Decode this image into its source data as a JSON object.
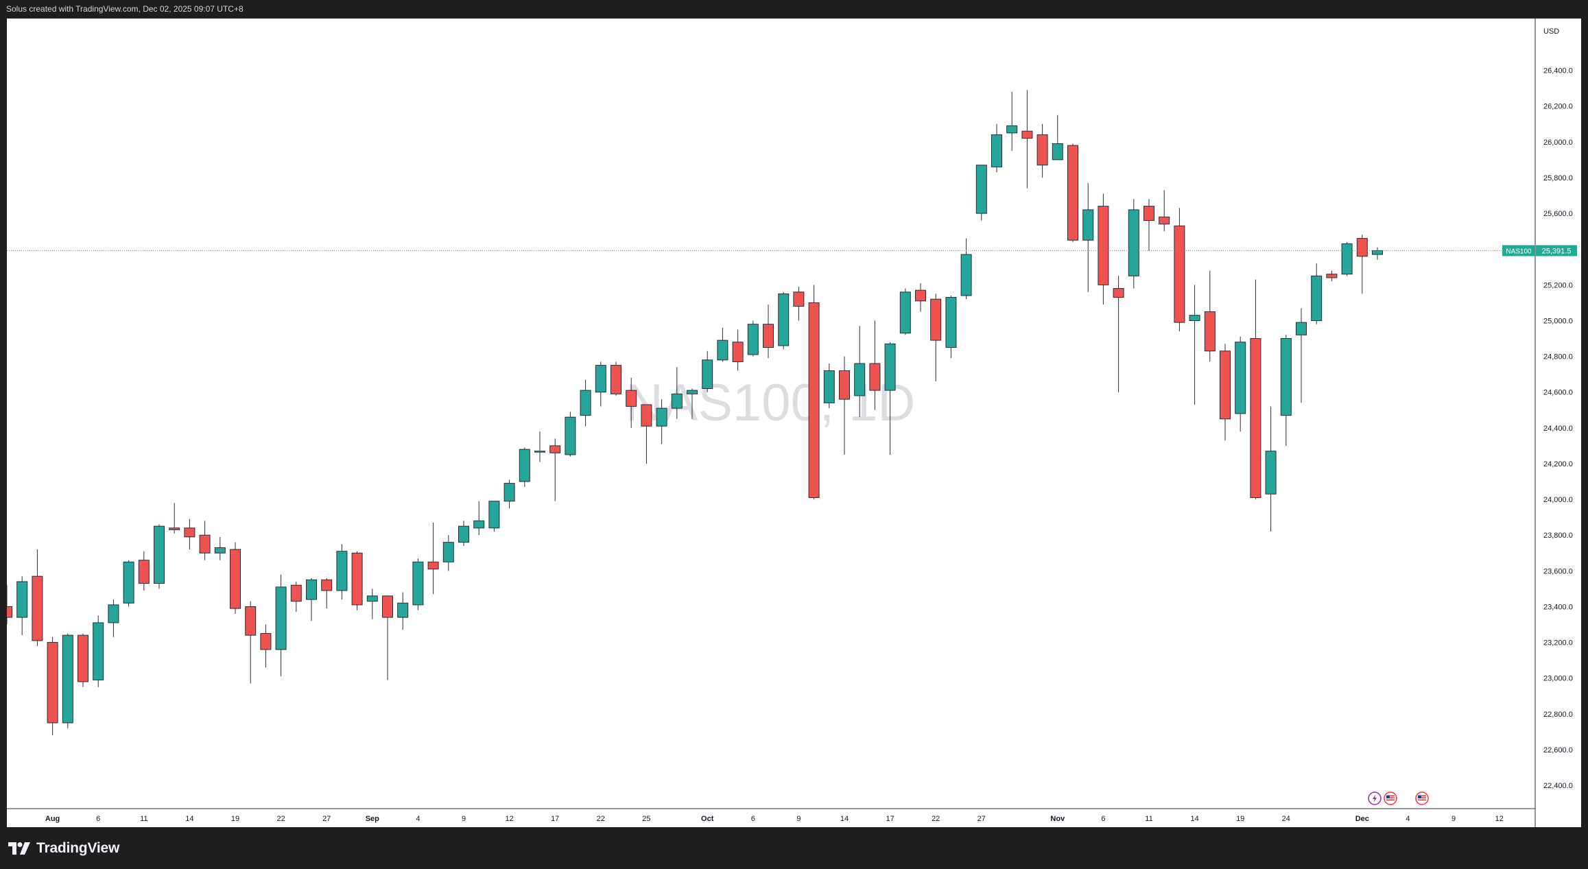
{
  "header": {
    "caption": "Solus created with TradingView.com, Dec 02, 2025 09:07 UTC+8"
  },
  "footer": {
    "brand": "TradingView"
  },
  "colors": {
    "up": "#26a69a",
    "down": "#ef5350",
    "wick": "#2a2e39",
    "axis_text": "#131722",
    "watermark": "#dcdde1",
    "price_tag": "#22ab94"
  },
  "icons": [
    "tradingview-logo-icon",
    "lightning-event-icon",
    "us-flag-event-icon"
  ],
  "chart_data": {
    "type": "candlestick",
    "symbol": "NAS100",
    "watermark": "NAS100, 1D",
    "currency": "USD",
    "y_range": [
      22270,
      26690
    ],
    "y_ticks": [
      22400,
      22600,
      22800,
      23000,
      23200,
      23400,
      23600,
      23800,
      24000,
      24200,
      24400,
      24600,
      24800,
      25000,
      25200,
      25400,
      25600,
      25800,
      26000,
      26200,
      26400
    ],
    "x_ticks": [
      {
        "label": "Aug",
        "bold": true,
        "i": 3
      },
      {
        "label": "6",
        "i": 6
      },
      {
        "label": "11",
        "i": 9
      },
      {
        "label": "14",
        "i": 12
      },
      {
        "label": "19",
        "i": 15
      },
      {
        "label": "22",
        "i": 18
      },
      {
        "label": "27",
        "i": 21
      },
      {
        "label": "Sep",
        "bold": true,
        "i": 24
      },
      {
        "label": "4",
        "i": 27
      },
      {
        "label": "9",
        "i": 30
      },
      {
        "label": "12",
        "i": 33
      },
      {
        "label": "17",
        "i": 36
      },
      {
        "label": "22",
        "i": 39
      },
      {
        "label": "25",
        "i": 42
      },
      {
        "label": "Oct",
        "bold": true,
        "i": 46
      },
      {
        "label": "6",
        "i": 49
      },
      {
        "label": "9",
        "i": 52
      },
      {
        "label": "14",
        "i": 55
      },
      {
        "label": "17",
        "i": 58
      },
      {
        "label": "22",
        "i": 61
      },
      {
        "label": "27",
        "i": 64
      },
      {
        "label": "Nov",
        "bold": true,
        "i": 69
      },
      {
        "label": "6",
        "i": 72
      },
      {
        "label": "11",
        "i": 75
      },
      {
        "label": "14",
        "i": 78
      },
      {
        "label": "19",
        "i": 81
      },
      {
        "label": "24",
        "i": 84
      },
      {
        "label": "Dec",
        "bold": true,
        "i": 89
      },
      {
        "label": "4",
        "i": 92
      },
      {
        "label": "9",
        "i": 95
      },
      {
        "label": "12",
        "i": 98
      }
    ],
    "last_price": 25391.5,
    "last_price_label": "25,391.5",
    "candles": [
      {
        "o": 23400,
        "h": 23520,
        "l": 23300,
        "c": 23340
      },
      {
        "o": 23340,
        "h": 23570,
        "l": 23240,
        "c": 23540
      },
      {
        "o": 23570,
        "h": 23720,
        "l": 23180,
        "c": 23210
      },
      {
        "o": 23200,
        "h": 23230,
        "l": 22680,
        "c": 22750
      },
      {
        "o": 22750,
        "h": 23250,
        "l": 22720,
        "c": 23240
      },
      {
        "o": 23240,
        "h": 23250,
        "l": 22950,
        "c": 22980
      },
      {
        "o": 22990,
        "h": 23350,
        "l": 22950,
        "c": 23310
      },
      {
        "o": 23310,
        "h": 23440,
        "l": 23230,
        "c": 23410
      },
      {
        "o": 23420,
        "h": 23660,
        "l": 23400,
        "c": 23650
      },
      {
        "o": 23660,
        "h": 23710,
        "l": 23490,
        "c": 23530
      },
      {
        "o": 23530,
        "h": 23860,
        "l": 23500,
        "c": 23850
      },
      {
        "o": 23840,
        "h": 23980,
        "l": 23810,
        "c": 23830
      },
      {
        "o": 23840,
        "h": 23890,
        "l": 23720,
        "c": 23790
      },
      {
        "o": 23800,
        "h": 23880,
        "l": 23660,
        "c": 23700
      },
      {
        "o": 23700,
        "h": 23790,
        "l": 23660,
        "c": 23730
      },
      {
        "o": 23720,
        "h": 23760,
        "l": 23360,
        "c": 23390
      },
      {
        "o": 23400,
        "h": 23430,
        "l": 22970,
        "c": 23240
      },
      {
        "o": 23250,
        "h": 23300,
        "l": 23060,
        "c": 23160
      },
      {
        "o": 23160,
        "h": 23580,
        "l": 23010,
        "c": 23510
      },
      {
        "o": 23520,
        "h": 23540,
        "l": 23370,
        "c": 23430
      },
      {
        "o": 23440,
        "h": 23560,
        "l": 23320,
        "c": 23550
      },
      {
        "o": 23550,
        "h": 23560,
        "l": 23390,
        "c": 23490
      },
      {
        "o": 23490,
        "h": 23750,
        "l": 23440,
        "c": 23710
      },
      {
        "o": 23700,
        "h": 23710,
        "l": 23380,
        "c": 23410
      },
      {
        "o": 23430,
        "h": 23500,
        "l": 23330,
        "c": 23460
      },
      {
        "o": 23460,
        "h": 23460,
        "l": 22990,
        "c": 23340
      },
      {
        "o": 23340,
        "h": 23480,
        "l": 23270,
        "c": 23420
      },
      {
        "o": 23410,
        "h": 23670,
        "l": 23380,
        "c": 23650
      },
      {
        "o": 23650,
        "h": 23870,
        "l": 23470,
        "c": 23610
      },
      {
        "o": 23650,
        "h": 23800,
        "l": 23600,
        "c": 23760
      },
      {
        "o": 23760,
        "h": 23880,
        "l": 23740,
        "c": 23850
      },
      {
        "o": 23840,
        "h": 23990,
        "l": 23800,
        "c": 23880
      },
      {
        "o": 23840,
        "h": 23970,
        "l": 23820,
        "c": 23990
      },
      {
        "o": 23990,
        "h": 24110,
        "l": 23950,
        "c": 24090
      },
      {
        "o": 24100,
        "h": 24290,
        "l": 24070,
        "c": 24280
      },
      {
        "o": 24270,
        "h": 24380,
        "l": 24210,
        "c": 24270
      },
      {
        "o": 24300,
        "h": 24340,
        "l": 23990,
        "c": 24260
      },
      {
        "o": 24250,
        "h": 24490,
        "l": 24240,
        "c": 24460
      },
      {
        "o": 24470,
        "h": 24670,
        "l": 24410,
        "c": 24610
      },
      {
        "o": 24600,
        "h": 24770,
        "l": 24520,
        "c": 24750
      },
      {
        "o": 24750,
        "h": 24770,
        "l": 24580,
        "c": 24590
      },
      {
        "o": 24610,
        "h": 24680,
        "l": 24400,
        "c": 24520
      },
      {
        "o": 24530,
        "h": 24530,
        "l": 24200,
        "c": 24410
      },
      {
        "o": 24410,
        "h": 24560,
        "l": 24310,
        "c": 24510
      },
      {
        "o": 24510,
        "h": 24740,
        "l": 24450,
        "c": 24590
      },
      {
        "o": 24590,
        "h": 24620,
        "l": 24450,
        "c": 24610
      },
      {
        "o": 24620,
        "h": 24830,
        "l": 24600,
        "c": 24780
      },
      {
        "o": 24780,
        "h": 24960,
        "l": 24770,
        "c": 24890
      },
      {
        "o": 24880,
        "h": 24950,
        "l": 24720,
        "c": 24770
      },
      {
        "o": 24810,
        "h": 25000,
        "l": 24800,
        "c": 24980
      },
      {
        "o": 24980,
        "h": 25090,
        "l": 24790,
        "c": 24850
      },
      {
        "o": 24860,
        "h": 25160,
        "l": 24840,
        "c": 25150
      },
      {
        "o": 25160,
        "h": 25190,
        "l": 25000,
        "c": 25080
      },
      {
        "o": 25100,
        "h": 25200,
        "l": 24000,
        "c": 24010
      },
      {
        "o": 24540,
        "h": 24760,
        "l": 24510,
        "c": 24720
      },
      {
        "o": 24720,
        "h": 24800,
        "l": 24250,
        "c": 24560
      },
      {
        "o": 24580,
        "h": 24970,
        "l": 24460,
        "c": 24760
      },
      {
        "o": 24760,
        "h": 25000,
        "l": 24500,
        "c": 24610
      },
      {
        "o": 24610,
        "h": 24880,
        "l": 24250,
        "c": 24870
      },
      {
        "o": 24930,
        "h": 25180,
        "l": 24920,
        "c": 25160
      },
      {
        "o": 25170,
        "h": 25210,
        "l": 25050,
        "c": 25110
      },
      {
        "o": 25120,
        "h": 25150,
        "l": 24660,
        "c": 24890
      },
      {
        "o": 24850,
        "h": 25140,
        "l": 24790,
        "c": 25130
      },
      {
        "o": 25140,
        "h": 25460,
        "l": 25120,
        "c": 25370
      },
      {
        "o": 25600,
        "h": 25870,
        "l": 25560,
        "c": 25870
      },
      {
        "o": 25860,
        "h": 26100,
        "l": 25830,
        "c": 26040
      },
      {
        "o": 26050,
        "h": 26280,
        "l": 25950,
        "c": 26090
      },
      {
        "o": 26060,
        "h": 26290,
        "l": 25740,
        "c": 26020
      },
      {
        "o": 26040,
        "h": 26100,
        "l": 25800,
        "c": 25870
      },
      {
        "o": 25900,
        "h": 26150,
        "l": 25900,
        "c": 25990
      },
      {
        "o": 25980,
        "h": 25990,
        "l": 25440,
        "c": 25450
      },
      {
        "o": 25450,
        "h": 25770,
        "l": 25160,
        "c": 25620
      },
      {
        "o": 25640,
        "h": 25710,
        "l": 25090,
        "c": 25200
      },
      {
        "o": 25180,
        "h": 25250,
        "l": 24600,
        "c": 25130
      },
      {
        "o": 25250,
        "h": 25680,
        "l": 25180,
        "c": 25620
      },
      {
        "o": 25640,
        "h": 25680,
        "l": 25390,
        "c": 25560
      },
      {
        "o": 25580,
        "h": 25730,
        "l": 25500,
        "c": 25540
      },
      {
        "o": 25530,
        "h": 25630,
        "l": 24940,
        "c": 24990
      },
      {
        "o": 25000,
        "h": 25200,
        "l": 24530,
        "c": 25030
      },
      {
        "o": 25050,
        "h": 25280,
        "l": 24770,
        "c": 24830
      },
      {
        "o": 24830,
        "h": 24870,
        "l": 24330,
        "c": 24450
      },
      {
        "o": 24480,
        "h": 24910,
        "l": 24380,
        "c": 24880
      },
      {
        "o": 24900,
        "h": 25230,
        "l": 24000,
        "c": 24010
      },
      {
        "o": 24030,
        "h": 24520,
        "l": 23820,
        "c": 24270
      },
      {
        "o": 24470,
        "h": 24920,
        "l": 24300,
        "c": 24900
      },
      {
        "o": 24920,
        "h": 25070,
        "l": 24540,
        "c": 24990
      },
      {
        "o": 25000,
        "h": 25320,
        "l": 24980,
        "c": 25250
      },
      {
        "o": 25260,
        "h": 25280,
        "l": 25220,
        "c": 25240
      },
      {
        "o": 25260,
        "h": 25440,
        "l": 25250,
        "c": 25430
      },
      {
        "o": 25460,
        "h": 25480,
        "l": 25150,
        "c": 25360
      },
      {
        "o": 25370,
        "h": 25410,
        "l": 25340,
        "c": 25391.5
      }
    ]
  }
}
